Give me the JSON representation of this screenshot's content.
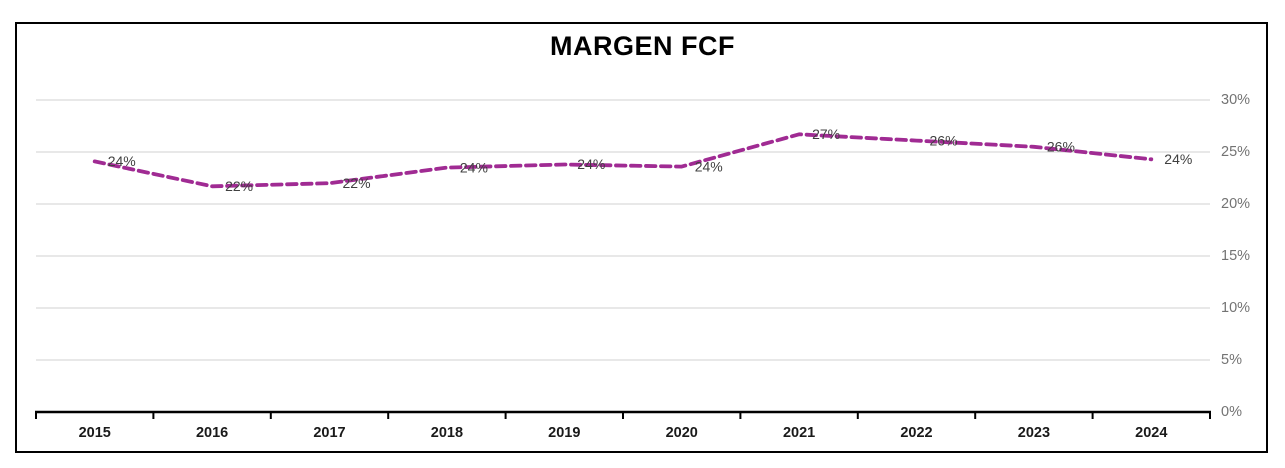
{
  "window": {
    "background": "#FFFFFF",
    "frame_border_color": "#000000"
  },
  "chart_data": {
    "type": "line",
    "title": "MARGEN FCF",
    "categories": [
      "2015",
      "2016",
      "2017",
      "2018",
      "2019",
      "2020",
      "2021",
      "2022",
      "2023",
      "2024"
    ],
    "series": [
      {
        "name": "MARGEN FCF",
        "values": [
          24.1,
          21.7,
          22.0,
          23.5,
          23.8,
          23.6,
          26.7,
          26.1,
          25.5,
          24.3
        ],
        "data_labels": [
          "24%",
          "22%",
          "22%",
          "24%",
          "24%",
          "24%",
          "27%",
          "26%",
          "26%",
          "24%"
        ],
        "color": "#A02B93",
        "line_style": "dashed"
      }
    ],
    "xlabel": "",
    "ylabel": "",
    "ylim": [
      0,
      30
    ],
    "y_tick_values": [
      0,
      5,
      10,
      15,
      20,
      25,
      30
    ],
    "y_tick_labels": [
      "0%",
      "5%",
      "10%",
      "15%",
      "20%",
      "25%",
      "30%"
    ],
    "y_axis_side": "right",
    "grid": true,
    "legend": "none",
    "colors": {
      "title": "#000000",
      "gridline": "#D9D9D9",
      "axis": "#000000",
      "y_tick_label": "#737373",
      "x_tick_label": "#1A1A1A",
      "data_label": "#404040"
    }
  }
}
